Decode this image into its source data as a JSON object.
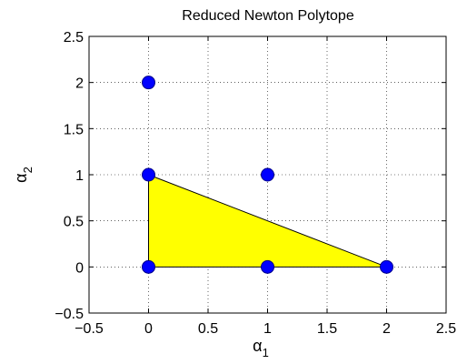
{
  "chart_data": {
    "type": "scatter",
    "title": "Reduced Newton Polytope",
    "xlabel": {
      "symbol": "α",
      "subscript": "1"
    },
    "ylabel": {
      "symbol": "α",
      "subscript": "2"
    },
    "xlim": [
      -0.5,
      2.5
    ],
    "ylim": [
      -0.5,
      2.5
    ],
    "x_ticks": [
      -0.5,
      0,
      0.5,
      1,
      1.5,
      2,
      2.5
    ],
    "y_ticks": [
      -0.5,
      0,
      0.5,
      1,
      1.5,
      2,
      2.5
    ],
    "x_tick_labels": [
      "−0.5",
      "0",
      "0.5",
      "1",
      "1.5",
      "2",
      "2.5"
    ],
    "y_tick_labels": [
      "−0.5",
      "0",
      "0.5",
      "1",
      "1.5",
      "2",
      "2.5"
    ],
    "grid": true,
    "polygon": {
      "vertices": [
        [
          0,
          0
        ],
        [
          0,
          1
        ],
        [
          2,
          0
        ]
      ],
      "fill_color": "#ffff00",
      "edge_color": "#000000"
    },
    "points": {
      "x": [
        0,
        0,
        0,
        1,
        1,
        2
      ],
      "y": [
        0,
        1,
        2,
        0,
        1,
        0
      ],
      "color": "#0000ff",
      "edge_color": "#00008b"
    }
  }
}
